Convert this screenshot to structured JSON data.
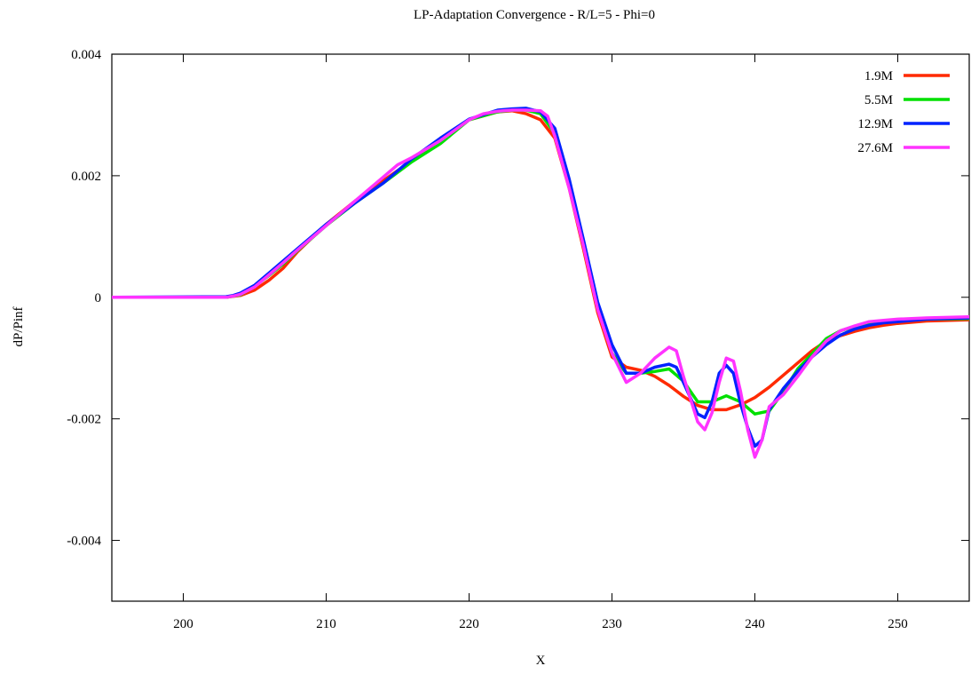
{
  "chart_data": {
    "type": "line",
    "title": "LP-Adaptation Convergence - R/L=5 - Phi=0",
    "xlabel": "X",
    "ylabel": "dP/Pinf",
    "xlim": [
      195,
      255
    ],
    "ylim": [
      -0.005,
      0.004
    ],
    "xticks": [
      200,
      210,
      220,
      230,
      240,
      250
    ],
    "yticks": [
      0.004,
      0.002,
      0,
      -0.002,
      -0.004
    ],
    "ytick_labels": [
      "0.004",
      "0.002",
      "0",
      "-0.002",
      "-0.004"
    ],
    "grid": false,
    "legend_position": "top-right",
    "series": [
      {
        "name": "1.9M",
        "color": "#ff2a00",
        "x": [
          195,
          203,
          204,
          205,
          206,
          207,
          208,
          210,
          212,
          214,
          216,
          218,
          220,
          222,
          223,
          224,
          225,
          226,
          227,
          228,
          229,
          230,
          231,
          232,
          233,
          234,
          235,
          236,
          237,
          238,
          239,
          240,
          241,
          242,
          243,
          244,
          245,
          246,
          247,
          248,
          249,
          250,
          252,
          255
        ],
        "y": [
          0,
          0,
          3e-05,
          0.00012,
          0.00028,
          0.00048,
          0.00075,
          0.0012,
          0.00158,
          0.00192,
          0.00225,
          0.00255,
          0.00292,
          0.00305,
          0.00307,
          0.00302,
          0.00292,
          0.00262,
          0.0018,
          0.0008,
          -0.00025,
          -0.00098,
          -0.00115,
          -0.0012,
          -0.0013,
          -0.00145,
          -0.00163,
          -0.00178,
          -0.00185,
          -0.00185,
          -0.00177,
          -0.00165,
          -0.00148,
          -0.00128,
          -0.00108,
          -0.00088,
          -0.00072,
          -0.00063,
          -0.00056,
          -0.0005,
          -0.00046,
          -0.00043,
          -0.00039,
          -0.00037
        ]
      },
      {
        "name": "5.5M",
        "color": "#00e000",
        "x": [
          195,
          203,
          204,
          205,
          206,
          207,
          208,
          210,
          212,
          214,
          216,
          218,
          220,
          222,
          223,
          224,
          225,
          226,
          227,
          228,
          229,
          230,
          231,
          232,
          233,
          234,
          235,
          236,
          237,
          238,
          239,
          240,
          241,
          242,
          243,
          244,
          245,
          246,
          247,
          248,
          249,
          250,
          252,
          255
        ],
        "y": [
          0,
          0,
          4e-05,
          0.00018,
          0.00036,
          0.00055,
          0.00077,
          0.00118,
          0.00155,
          0.00188,
          0.00223,
          0.00253,
          0.00292,
          0.00305,
          0.00308,
          0.00308,
          0.00302,
          0.0027,
          0.0019,
          0.0009,
          -0.00018,
          -0.00092,
          -0.00125,
          -0.00125,
          -0.00122,
          -0.00118,
          -0.00138,
          -0.00172,
          -0.00172,
          -0.00162,
          -0.00172,
          -0.00192,
          -0.00187,
          -0.00155,
          -0.00118,
          -0.00093,
          -0.00068,
          -0.00055,
          -0.00048,
          -0.00042,
          -0.00039,
          -0.00038,
          -0.00036,
          -0.00035
        ]
      },
      {
        "name": "12.9M",
        "color": "#0022ff",
        "x": [
          195,
          203,
          203.5,
          204,
          205,
          206,
          207,
          208,
          210,
          212,
          214,
          216,
          218,
          220,
          222,
          223,
          224,
          225,
          226,
          227,
          228,
          229,
          230,
          231,
          232,
          233,
          234,
          234.5,
          235,
          236,
          236.5,
          237,
          237.5,
          238,
          238.5,
          239,
          239.5,
          240,
          240.5,
          241,
          242,
          243,
          244,
          245,
          246,
          247,
          248,
          249,
          250,
          252,
          255
        ],
        "y": [
          0,
          1e-05,
          3e-05,
          7e-05,
          0.0002,
          0.0004,
          0.0006,
          0.0008,
          0.0012,
          0.00155,
          0.00188,
          0.00228,
          0.00262,
          0.00293,
          0.00308,
          0.0031,
          0.00311,
          0.00305,
          0.00278,
          0.00195,
          0.00095,
          -8e-05,
          -0.00078,
          -0.00125,
          -0.00125,
          -0.00115,
          -0.0011,
          -0.00115,
          -0.0014,
          -0.00192,
          -0.00198,
          -0.00172,
          -0.00125,
          -0.00112,
          -0.00125,
          -0.00175,
          -0.00215,
          -0.00245,
          -0.00235,
          -0.00185,
          -0.0015,
          -0.00122,
          -0.00098,
          -0.00078,
          -0.00062,
          -0.00052,
          -0.00046,
          -0.00042,
          -0.0004,
          -0.00036,
          -0.00034
        ]
      },
      {
        "name": "27.6M",
        "color": "#ff33ff",
        "x": [
          195,
          203,
          203.5,
          204,
          205,
          206,
          207,
          208,
          210,
          212,
          214,
          215,
          216,
          218,
          220,
          221,
          222,
          223,
          224,
          225,
          225.5,
          226,
          227,
          228,
          229,
          230,
          231,
          232,
          233,
          234,
          234.5,
          235,
          236,
          236.5,
          237,
          237.5,
          238,
          238.5,
          239,
          239.5,
          240,
          240.5,
          241,
          242,
          243,
          244,
          245,
          246,
          247,
          248,
          249,
          250,
          252,
          255
        ],
        "y": [
          0,
          0,
          2e-05,
          5e-05,
          0.00017,
          0.00037,
          0.00057,
          0.00078,
          0.00118,
          0.00158,
          0.00198,
          0.00218,
          0.0023,
          0.00258,
          0.00292,
          0.00302,
          0.00306,
          0.00308,
          0.00308,
          0.00307,
          0.00298,
          0.00265,
          0.0018,
          0.00085,
          -0.0002,
          -0.00092,
          -0.0014,
          -0.00125,
          -0.001,
          -0.00082,
          -0.00088,
          -0.0013,
          -0.00205,
          -0.00218,
          -0.0019,
          -0.0014,
          -0.001,
          -0.00105,
          -0.00155,
          -0.00218,
          -0.00263,
          -0.00235,
          -0.0018,
          -0.0016,
          -0.0013,
          -0.00098,
          -0.00072,
          -0.00055,
          -0.00047,
          -0.0004,
          -0.00038,
          -0.00036,
          -0.00034,
          -0.00032
        ]
      }
    ]
  }
}
